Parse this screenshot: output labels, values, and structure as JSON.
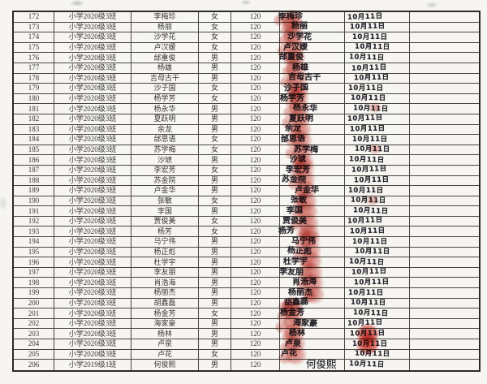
{
  "colors": {
    "paper": "#f6f5f1",
    "grid_line": "#4a463f",
    "printed_ink": "#3a3733",
    "handwriting_ink": "#2a2830",
    "thumbprint_red": "#c1261a"
  },
  "table": {
    "rows": [
      {
        "no": "172",
        "class": "小学2020级3班",
        "name": "李梅珍",
        "gender": "女",
        "amount": "120",
        "signature": "李梅珍",
        "date": "10月11日",
        "thumbprint": true,
        "date_smudge": "none"
      },
      {
        "no": "173",
        "class": "小学2020级3班",
        "name": "杨丽",
        "gender": "女",
        "amount": "120",
        "signature": "杨丽",
        "date": "10月11日",
        "thumbprint": true,
        "date_smudge": "none"
      },
      {
        "no": "174",
        "class": "小学2020级3班",
        "name": "沙学花",
        "gender": "女",
        "amount": "120",
        "signature": "沙学花",
        "date": "10月11日",
        "thumbprint": true,
        "date_smudge": "none"
      },
      {
        "no": "175",
        "class": "小学2020级3班",
        "name": "卢汉嫒",
        "gender": "女",
        "amount": "120",
        "signature": "卢汉嫒",
        "date": "10月11日",
        "thumbprint": true,
        "date_smudge": "none"
      },
      {
        "no": "176",
        "class": "小学2020级3班",
        "name": "邰重俊",
        "gender": "男",
        "amount": "120",
        "signature": "邰重俊",
        "date": "10月11日",
        "thumbprint": true,
        "date_smudge": "none"
      },
      {
        "no": "177",
        "class": "小学2020级3班",
        "name": "杨雄",
        "gender": "男",
        "amount": "120",
        "signature": "杨雄",
        "date": "10月11日",
        "thumbprint": true,
        "date_smudge": "none"
      },
      {
        "no": "178",
        "class": "小学2020级3班",
        "name": "吉母古干",
        "gender": "男",
        "amount": "120",
        "signature": "吉母古干",
        "date": "10月11日",
        "thumbprint": true,
        "date_smudge": "none"
      },
      {
        "no": "179",
        "class": "小学2020级3班",
        "name": "沙子国",
        "gender": "女",
        "amount": "120",
        "signature": "沙子国",
        "date": "10月11日",
        "thumbprint": true,
        "date_smudge": "none"
      },
      {
        "no": "180",
        "class": "小学2020级3班",
        "name": "杨学芳",
        "gender": "女",
        "amount": "120",
        "signature": "杨学芳",
        "date": "10月11日",
        "thumbprint": true,
        "date_smudge": "none"
      },
      {
        "no": "181",
        "class": "小学2020级3班",
        "name": "杨永华",
        "gender": "男",
        "amount": "120",
        "signature": "杨永华",
        "date": "10月11日",
        "thumbprint": true,
        "date_smudge": "small"
      },
      {
        "no": "182",
        "class": "小学2020级3班",
        "name": "夏跃明",
        "gender": "男",
        "amount": "120",
        "signature": "夏跃明",
        "date": "10月11日",
        "thumbprint": true,
        "date_smudge": "none"
      },
      {
        "no": "183",
        "class": "小学2020级3班",
        "name": "余龙",
        "gender": "男",
        "amount": "120",
        "signature": "余龙",
        "date": "10月11日",
        "thumbprint": true,
        "date_smudge": "none"
      },
      {
        "no": "184",
        "class": "小学2020级3班",
        "name": "邰思语",
        "gender": "女",
        "amount": "120",
        "signature": "邰思语",
        "date": "10月11日",
        "thumbprint": true,
        "date_smudge": "none"
      },
      {
        "no": "185",
        "class": "小学2020级3班",
        "name": "苏学梅",
        "gender": "女",
        "amount": "120",
        "signature": "苏学梅",
        "date": "10月11日",
        "thumbprint": true,
        "date_smudge": "small"
      },
      {
        "no": "186",
        "class": "小学2020级3班",
        "name": "沙琥",
        "gender": "男",
        "amount": "120",
        "signature": "沙琥",
        "date": "10月11日",
        "thumbprint": true,
        "date_smudge": "none"
      },
      {
        "no": "187",
        "class": "小学2020级3班",
        "name": "李宏芳",
        "gender": "女",
        "amount": "120",
        "signature": "李宏芳",
        "date": "10月11日",
        "thumbprint": true,
        "date_smudge": "none"
      },
      {
        "no": "188",
        "class": "小学2020级3班",
        "name": "苏金院",
        "gender": "男",
        "amount": "120",
        "signature": "苏金院",
        "date": "10月11日",
        "thumbprint": true,
        "date_smudge": "none"
      },
      {
        "no": "189",
        "class": "小学2020级3班",
        "name": "卢金华",
        "gender": "男",
        "amount": "120",
        "signature": "卢金华",
        "date": "10月11日",
        "thumbprint": true,
        "date_smudge": "none"
      },
      {
        "no": "190",
        "class": "小学2020级3班",
        "name": "张敏",
        "gender": "女",
        "amount": "120",
        "signature": "张敏",
        "date": "10月11日",
        "thumbprint": true,
        "date_smudge": "small"
      },
      {
        "no": "191",
        "class": "小学2020级3班",
        "name": "李国",
        "gender": "男",
        "amount": "120",
        "signature": "李国",
        "date": "10月11日",
        "thumbprint": true,
        "date_smudge": "none"
      },
      {
        "no": "192",
        "class": "小学2020级3班",
        "name": "贾俊美",
        "gender": "女",
        "amount": "120",
        "signature": "贾俊美",
        "date": "10月11日",
        "thumbprint": true,
        "date_smudge": "none"
      },
      {
        "no": "193",
        "class": "小学2020级3班",
        "name": "杨芳",
        "gender": "女",
        "amount": "120",
        "signature": "杨芳",
        "date": "10月11日",
        "thumbprint": true,
        "date_smudge": "none"
      },
      {
        "no": "194",
        "class": "小学2020级3班",
        "name": "马宁伟",
        "gender": "男",
        "amount": "120",
        "signature": "马宁伟",
        "date": "10月11日",
        "thumbprint": true,
        "date_smudge": "none"
      },
      {
        "no": "195",
        "class": "小学2020级3班",
        "name": "杨正彪",
        "gender": "男",
        "amount": "120",
        "signature": "杨正彪",
        "date": "10月11日",
        "thumbprint": true,
        "date_smudge": "none"
      },
      {
        "no": "196",
        "class": "小学2020级3班",
        "name": "杜学宇",
        "gender": "男",
        "amount": "120",
        "signature": "杜学宇",
        "date": "10月11日",
        "thumbprint": true,
        "date_smudge": "none"
      },
      {
        "no": "197",
        "class": "小学2020级3班",
        "name": "李友朋",
        "gender": "男",
        "amount": "120",
        "signature": "李友朋",
        "date": "10月11日",
        "thumbprint": true,
        "date_smudge": "none"
      },
      {
        "no": "198",
        "class": "小学2020级3班",
        "name": "肖浩海",
        "gender": "男",
        "amount": "120",
        "signature": "肖浩海",
        "date": "10月11日",
        "thumbprint": true,
        "date_smudge": "none"
      },
      {
        "no": "199",
        "class": "小学2020级3班",
        "name": "杨丽杰",
        "gender": "男",
        "amount": "120",
        "signature": "杨丽杰",
        "date": "10月11日",
        "thumbprint": true,
        "date_smudge": "none"
      },
      {
        "no": "200",
        "class": "小学2020级3班",
        "name": "胡鑫磊",
        "gender": "男",
        "amount": "120",
        "signature": "胡鑫磊",
        "date": "10月11日",
        "thumbprint": true,
        "date_smudge": "none"
      },
      {
        "no": "201",
        "class": "小学2020级3班",
        "name": "杨金芳",
        "gender": "女",
        "amount": "120",
        "signature": "杨金芳",
        "date": "10月11日",
        "thumbprint": true,
        "date_smudge": "none"
      },
      {
        "no": "202",
        "class": "小学2020级3班",
        "name": "海家豪",
        "gender": "男",
        "amount": "120",
        "signature": "海家豪",
        "date": "10月11日",
        "thumbprint": true,
        "date_smudge": "none"
      },
      {
        "no": "203",
        "class": "小学2020级3班",
        "name": "杨林",
        "gender": "男",
        "amount": "120",
        "signature": "杨林",
        "date": "10月11日",
        "thumbprint": true,
        "date_smudge": "large"
      },
      {
        "no": "204",
        "class": "小学2020级3班",
        "name": "卢泉",
        "gender": "男",
        "amount": "120",
        "signature": "卢泉",
        "date": "10月11日",
        "thumbprint": true,
        "date_smudge": "large"
      },
      {
        "no": "205",
        "class": "小学2020级3班",
        "name": "卢花",
        "gender": "女",
        "amount": "120",
        "signature": "卢花",
        "date": "10月11日",
        "thumbprint": true,
        "date_smudge": "none"
      },
      {
        "no": "206",
        "class": "小学2019级1班",
        "name": "何俊熙",
        "gender": "男",
        "amount": "120",
        "signature": "何俊熙",
        "date": "10月11日",
        "thumbprint": false,
        "date_smudge": "none",
        "signature_style": "large"
      }
    ]
  }
}
